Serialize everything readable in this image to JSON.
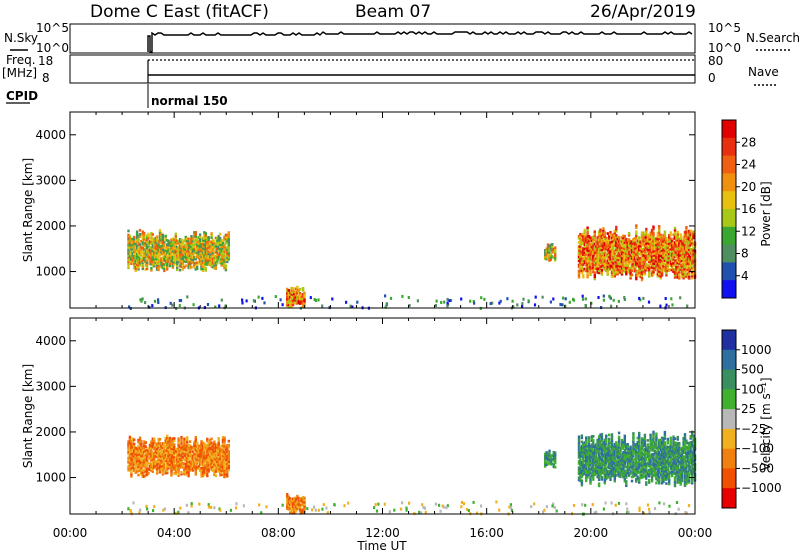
{
  "header": {
    "station": "Dome C East (fitACF)",
    "beam": "Beam 07",
    "date": "26/Apr/2019"
  },
  "param_panels": {
    "left_labels": [
      "N.Sky",
      "Freq.",
      "[MHz]",
      "CPID"
    ],
    "right_labels": [
      "N.Search",
      "Nave"
    ],
    "nsky_ticks": [
      "10^5",
      "10^0"
    ],
    "nsearch_ticks": [
      "10^5",
      "10^0"
    ],
    "freq_ticks": [
      "18",
      "8"
    ],
    "nave_ticks": [
      "80",
      "0"
    ],
    "cpid_text": "normal 150"
  },
  "colors": {
    "power_scale": [
      "#1010f0",
      "#2050b0",
      "#4f8f5f",
      "#3aa830",
      "#a8c818",
      "#e8c010",
      "#f09010",
      "#f06010",
      "#e83010",
      "#e00000"
    ],
    "velocity_scale": [
      "#e80000",
      "#f05000",
      "#f08010",
      "#f0b020",
      "#b8b8b8",
      "#40b030",
      "#3a8f60",
      "#2f6fa0",
      "#2030a0"
    ]
  },
  "chart_data": [
    {
      "type": "heatmap",
      "name": "power",
      "xlabel": "",
      "ylabel": "Slant Range [km]",
      "x_range_hours": [
        0,
        24
      ],
      "ylim": [
        200,
        4500
      ],
      "y_ticks": [
        "1000",
        "2000",
        "3000",
        "4000"
      ],
      "colorbar_label": "Power [dB]",
      "colorbar_ticks": [
        "4",
        "8",
        "12",
        "16",
        "20",
        "24",
        "28"
      ],
      "echo_regions": [
        {
          "t_start": 2.2,
          "t_end": 6.1,
          "r_min": 1000,
          "r_max": 1900,
          "level": "moderate"
        },
        {
          "t_start": 8.3,
          "t_end": 9.0,
          "r_min": 200,
          "r_max": 650,
          "level": "strong"
        },
        {
          "t_start": 18.2,
          "t_end": 18.6,
          "r_min": 1200,
          "r_max": 1600,
          "level": "moderate"
        },
        {
          "t_start": 19.5,
          "t_end": 24.0,
          "r_min": 800,
          "r_max": 2000,
          "level": "strong"
        }
      ]
    },
    {
      "type": "heatmap",
      "name": "velocity",
      "xlabel": "Time UT",
      "ylabel": "Slant Range [km]",
      "x_range_hours": [
        0,
        24
      ],
      "x_ticks": [
        "00:00",
        "04:00",
        "08:00",
        "12:00",
        "16:00",
        "20:00",
        "00:00"
      ],
      "ylim": [
        200,
        4500
      ],
      "y_ticks": [
        "1000",
        "2000",
        "3000",
        "4000"
      ],
      "colorbar_label": "Velocity [m s⁻¹]",
      "colorbar_ticks": [
        "1000",
        "500",
        "100",
        "25",
        "−25",
        "−100",
        "−500",
        "−1000"
      ],
      "echo_regions": [
        {
          "t_start": 2.2,
          "t_end": 6.1,
          "r_min": 1000,
          "r_max": 1900,
          "sign": "negative"
        },
        {
          "t_start": 8.3,
          "t_end": 9.0,
          "r_min": 200,
          "r_max": 650,
          "sign": "negative"
        },
        {
          "t_start": 18.2,
          "t_end": 18.6,
          "r_min": 1200,
          "r_max": 1600,
          "sign": "positive"
        },
        {
          "t_start": 19.5,
          "t_end": 24.0,
          "r_min": 800,
          "r_max": 2000,
          "sign": "positive"
        }
      ]
    }
  ]
}
